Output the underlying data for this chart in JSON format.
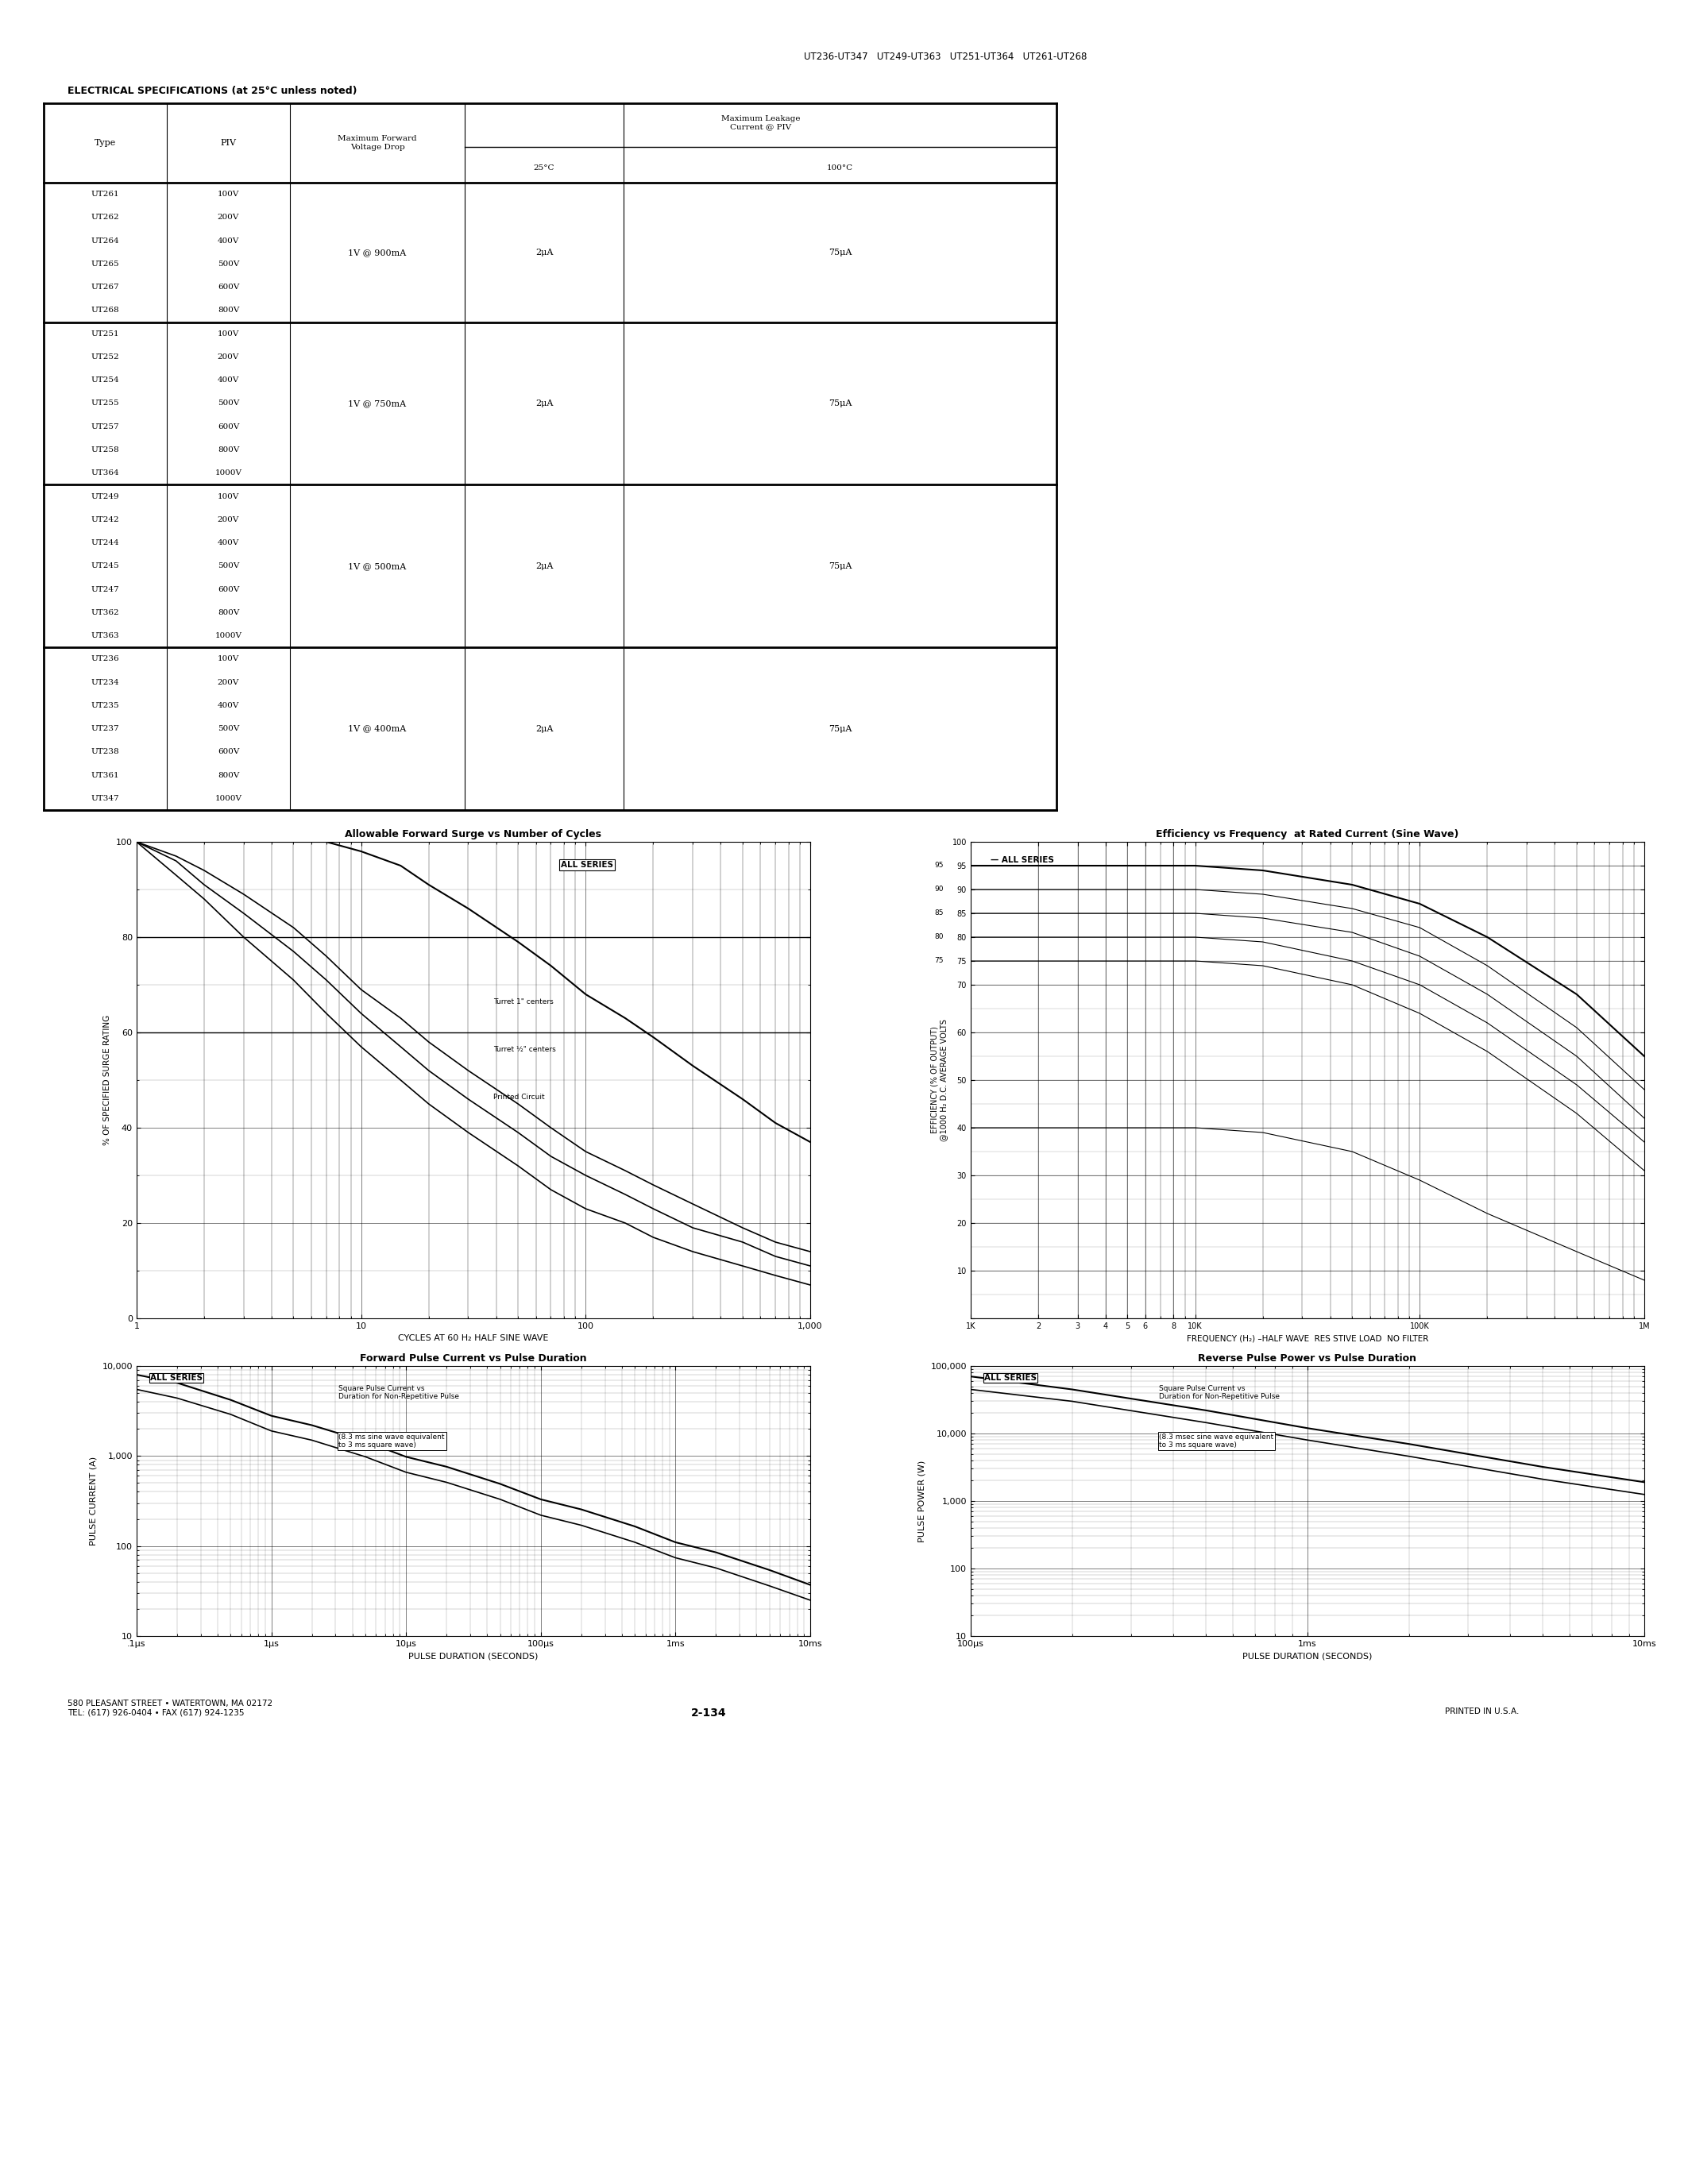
{
  "page_title": "UT236-UT347   UT249-UT363   UT251-UT364   UT261-UT268",
  "elec_spec_title": "ELECTRICAL SPECIFICATIONS (at 25°C unless noted)",
  "table_groups": [
    {
      "types": [
        "UT261",
        "UT262",
        "UT264",
        "UT265",
        "UT267",
        "UT268"
      ],
      "pivs": [
        "100V",
        "200V",
        "400V",
        "500V",
        "600V",
        "800V"
      ],
      "fwd_drop": "1V @ 900mA",
      "leak_25": "2μA",
      "leak_100": "75μA"
    },
    {
      "types": [
        "UT251",
        "UT252",
        "UT254",
        "UT255",
        "UT257",
        "UT258",
        "UT364"
      ],
      "pivs": [
        "100V",
        "200V",
        "400V",
        "500V",
        "600V",
        "800V",
        "1000V"
      ],
      "fwd_drop": "1V @ 750mA",
      "leak_25": "2μA",
      "leak_100": "75μA"
    },
    {
      "types": [
        "UT249",
        "UT242",
        "UT244",
        "UT245",
        "UT247",
        "UT362",
        "UT363"
      ],
      "pivs": [
        "100V",
        "200V",
        "400V",
        "500V",
        "600V",
        "800V",
        "1000V"
      ],
      "fwd_drop": "1V @ 500mA",
      "leak_25": "2μA",
      "leak_100": "75μA"
    },
    {
      "types": [
        "UT236",
        "UT234",
        "UT235",
        "UT237",
        "UT238",
        "UT361",
        "UT347"
      ],
      "pivs": [
        "100V",
        "200V",
        "400V",
        "500V",
        "600V",
        "800V",
        "1000V"
      ],
      "fwd_drop": "1V @ 400mA",
      "leak_25": "2μA",
      "leak_100": "75μA"
    }
  ],
  "graph1_title": "Allowable Forward Surge vs Number of Cycles",
  "graph1_xlabel": "CYCLES AT 60 H₂ HALF SINE WAVE",
  "graph1_ylabel": "% OF SPECIFIED SURGE RATING",
  "graph2_title": "Efficiency vs Frequency  at Rated Current (Sine Wave)",
  "graph2_xlabel": "FREQUENCY (H₂) –HALF WAVE  RES STIVE LOAD  NO FILTER",
  "graph2_ylabel": "EFFICIENCY (% OF OUTPUT)\n@1000 H₂ D.C. AVERAGE VOLTS",
  "graph3_title": "Forward Pulse Current vs Pulse Duration",
  "graph3_xlabel": "PULSE DURATION (SECONDS)",
  "graph3_ylabel": "PULSE CURRENT (A)",
  "graph4_title": "Reverse Pulse Power vs Pulse Duration",
  "graph4_xlabel": "PULSE DURATION (SECONDS)",
  "graph4_ylabel": "PULSE POWER (W)",
  "footer_left": "580 PLEASANT STREET • WATERTOWN, MA 02172\nTEL: (617) 926-0404 • FAX (617) 924-1235",
  "footer_center": "2-134",
  "footer_right": "PRINTED IN U.S.A.",
  "bg_color": "#ffffff",
  "line_color": "#000000"
}
